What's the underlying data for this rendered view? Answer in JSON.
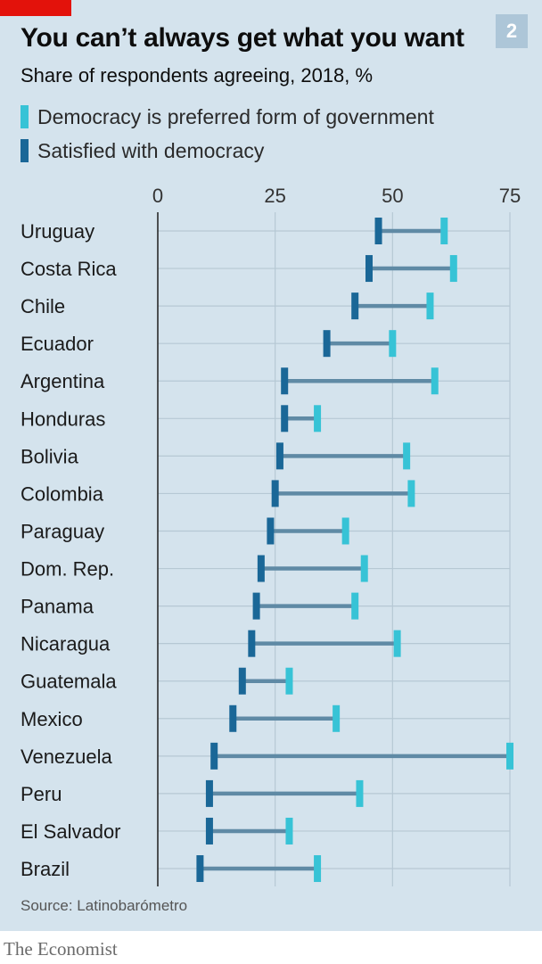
{
  "header": {
    "title": "You can’t always get what you want",
    "subtitle": "Share of respondents agreeing, 2018, %",
    "badge": "2"
  },
  "legend": [
    {
      "label": "Democracy is preferred form of government",
      "color": "#37c3d6"
    },
    {
      "label": "Satisfied with democracy",
      "color": "#1a6797"
    }
  ],
  "footer": {
    "source": "Source: Latinobarómetro",
    "logo": "The Economist"
  },
  "colors": {
    "background": "#d4e3ed",
    "connector": "#5f8aa5",
    "gridline": "#b6c8d4",
    "axis": "#2a2a2a",
    "brand_red": "#e3120b"
  },
  "chart_data": {
    "type": "dumbbell",
    "title": "You can’t always get what you want",
    "subtitle": "Share of respondents agreeing, 2018, %",
    "categories": [
      "Uruguay",
      "Costa Rica",
      "Chile",
      "Ecuador",
      "Argentina",
      "Honduras",
      "Bolivia",
      "Colombia",
      "Paraguay",
      "Dom. Rep.",
      "Panama",
      "Nicaragua",
      "Guatemala",
      "Mexico",
      "Venezuela",
      "Peru",
      "El Salvador",
      "Brazil"
    ],
    "series": [
      {
        "name": "Democracy is preferred form of government",
        "values": [
          61,
          63,
          58,
          50,
          59,
          34,
          53,
          54,
          40,
          44,
          42,
          51,
          28,
          38,
          75,
          43,
          28,
          34
        ]
      },
      {
        "name": "Satisfied with democracy",
        "values": [
          47,
          45,
          42,
          36,
          27,
          27,
          26,
          25,
          24,
          22,
          21,
          20,
          18,
          16,
          12,
          11,
          11,
          9
        ]
      }
    ],
    "x_ticks": [
      0,
      25,
      50,
      75
    ],
    "xlim": [
      0,
      75
    ],
    "grid": true,
    "legend_position": "top-left"
  }
}
